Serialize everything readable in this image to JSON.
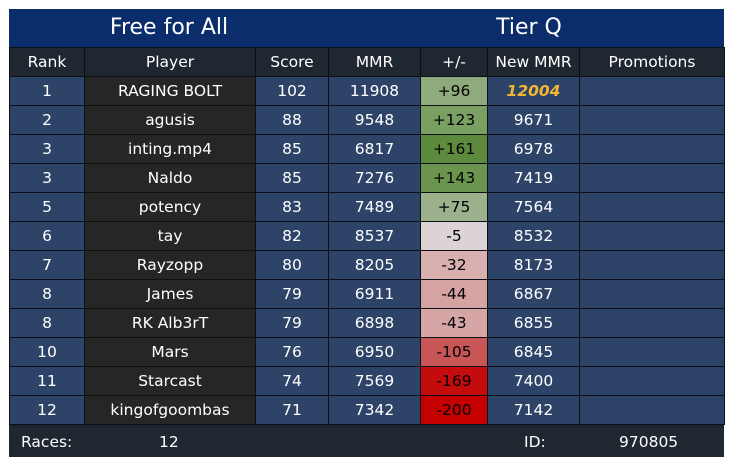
{
  "header": {
    "mode": "Free for All",
    "tier": "Tier Q"
  },
  "columns": [
    "Rank",
    "Player",
    "Score",
    "MMR",
    "+/-",
    "New MMR",
    "Promotions"
  ],
  "rows": [
    {
      "rank": "1",
      "player": "RAGING BOLT",
      "score": "102",
      "mmr": "11908",
      "delta": "+96",
      "new_mmr": "12004",
      "promotions": "",
      "delta_color": "#8faa7c",
      "new_mmr_highlight": true
    },
    {
      "rank": "2",
      "player": "agusis",
      "score": "88",
      "mmr": "9548",
      "delta": "+123",
      "new_mmr": "9671",
      "promotions": "",
      "delta_color": "#7a9f62"
    },
    {
      "rank": "3",
      "player": "inting.mp4",
      "score": "85",
      "mmr": "6817",
      "delta": "+161",
      "new_mmr": "6978",
      "promotions": "",
      "delta_color": "#5d8a3c"
    },
    {
      "rank": "3",
      "player": "Naldo",
      "score": "85",
      "mmr": "7276",
      "delta": "+143",
      "new_mmr": "7419",
      "promotions": "",
      "delta_color": "#6b944e"
    },
    {
      "rank": "5",
      "player": "potency",
      "score": "83",
      "mmr": "7489",
      "delta": "+75",
      "new_mmr": "7564",
      "promotions": "",
      "delta_color": "#9cb28c"
    },
    {
      "rank": "6",
      "player": "tay",
      "score": "82",
      "mmr": "8537",
      "delta": "-5",
      "new_mmr": "8532",
      "promotions": "",
      "delta_color": "#dcd4d4"
    },
    {
      "rank": "7",
      "player": "Rayzopp",
      "score": "80",
      "mmr": "8205",
      "delta": "-32",
      "new_mmr": "8173",
      "promotions": "",
      "delta_color": "#d9b0b0"
    },
    {
      "rank": "8",
      "player": "James",
      "score": "79",
      "mmr": "6911",
      "delta": "-44",
      "new_mmr": "6867",
      "promotions": "",
      "delta_color": "#d6a3a3"
    },
    {
      "rank": "8",
      "player": "RK Alb3rT",
      "score": "79",
      "mmr": "6898",
      "delta": "-43",
      "new_mmr": "6855",
      "promotions": "",
      "delta_color": "#d6a5a5"
    },
    {
      "rank": "10",
      "player": "Mars",
      "score": "76",
      "mmr": "6950",
      "delta": "-105",
      "new_mmr": "6845",
      "promotions": "",
      "delta_color": "#c85656"
    },
    {
      "rank": "11",
      "player": "Starcast",
      "score": "74",
      "mmr": "7569",
      "delta": "-169",
      "new_mmr": "7400",
      "promotions": "",
      "delta_color": "#c40c0c"
    },
    {
      "rank": "12",
      "player": "kingofgoombas",
      "score": "71",
      "mmr": "7342",
      "delta": "-200",
      "new_mmr": "7142",
      "promotions": "",
      "delta_color": "#c40000"
    }
  ],
  "footer": {
    "races_label": "Races:",
    "races_value": "12",
    "id_label": "ID:",
    "id_value": "970805"
  },
  "colors": {
    "header_bg": "#0b2d6b",
    "cell_bg": "#2d4468",
    "player_bg": "#262626",
    "highlight_text": "#f3b633"
  }
}
